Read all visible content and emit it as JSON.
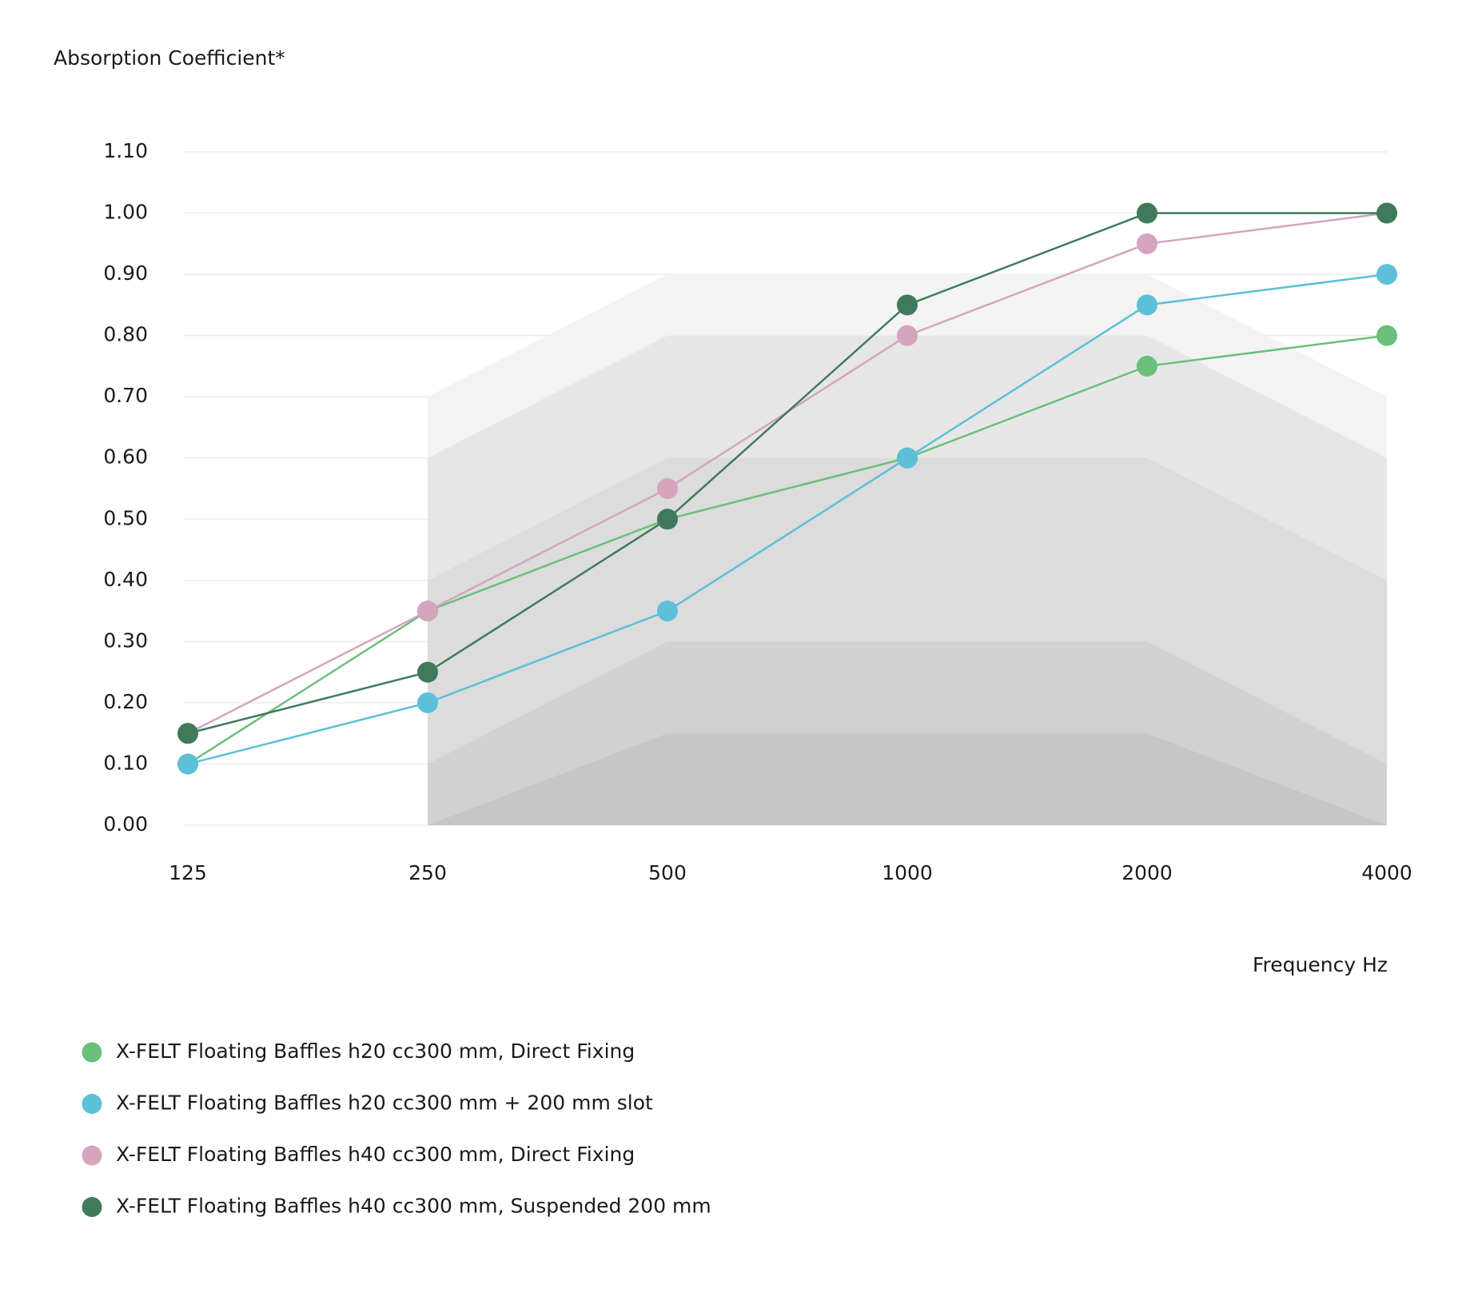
{
  "chart_data": {
    "type": "line",
    "y_axis_label": "Absorption Coefficient*",
    "x_axis_label": "Frequency Hz",
    "categories": [
      "125",
      "250",
      "500",
      "1000",
      "2000",
      "4000"
    ],
    "ylim": [
      0,
      1.1
    ],
    "yticks": [
      {
        "value": 0,
        "label": "0.00"
      },
      {
        "value": 0.1,
        "label": "0.10"
      },
      {
        "value": 0.2,
        "label": "0.20"
      },
      {
        "value": 0.3,
        "label": "0.30"
      },
      {
        "value": 0.4,
        "label": "0.40"
      },
      {
        "value": 0.5,
        "label": "0.50"
      },
      {
        "value": 0.6,
        "label": "0.60"
      },
      {
        "value": 0.7,
        "label": "0.70"
      },
      {
        "value": 0.8,
        "label": "0.80"
      },
      {
        "value": 0.9,
        "label": "0.90"
      },
      {
        "value": 1,
        "label": "1.00"
      },
      {
        "value": 1.1,
        "label": "1.10"
      }
    ],
    "grid": true,
    "background_bands": [
      {
        "color": "#f3f3f3",
        "values": [
          null,
          0.7,
          0.9,
          0.9,
          0.9,
          0.7
        ]
      },
      {
        "color": "#e7e6e7",
        "values": [
          null,
          0.6,
          0.8,
          0.8,
          0.8,
          0.6
        ]
      },
      {
        "color": "#dcdcdd",
        "values": [
          null,
          0.4,
          0.6,
          0.6,
          0.6,
          0.4
        ]
      },
      {
        "color": "#d1d1d1",
        "values": [
          null,
          0.1,
          0.3,
          0.3,
          0.3,
          0.1
        ]
      },
      {
        "color": "#c6c6c6",
        "values": [
          null,
          0,
          0.15,
          0.15,
          0.15,
          0
        ]
      }
    ],
    "series": [
      {
        "name": "X-FELT Floating Baffles h20 cc300 mm, Direct Fixing",
        "color": "#6abf7b",
        "values": [
          0.1,
          0.35,
          0.5,
          0.6,
          0.75,
          0.8
        ]
      },
      {
        "name": "X-FELT Floating Baffles h20 cc300 mm + 200 mm slot",
        "color": "#5bc0d8",
        "values": [
          0.1,
          0.2,
          0.35,
          0.6,
          0.85,
          0.9
        ]
      },
      {
        "name": "X-FELT Floating Baffles h40 cc300 mm, Direct Fixing",
        "color": "#d4a5bd",
        "values": [
          0.15,
          0.35,
          0.55,
          0.8,
          0.95,
          1
        ]
      },
      {
        "name": "X-FELT Floating Baffles h40 cc300 mm, Suspended 200 mm",
        "color": "#3f7a5c",
        "values": [
          0.15,
          0.25,
          0.5,
          0.85,
          1,
          1
        ]
      }
    ]
  }
}
